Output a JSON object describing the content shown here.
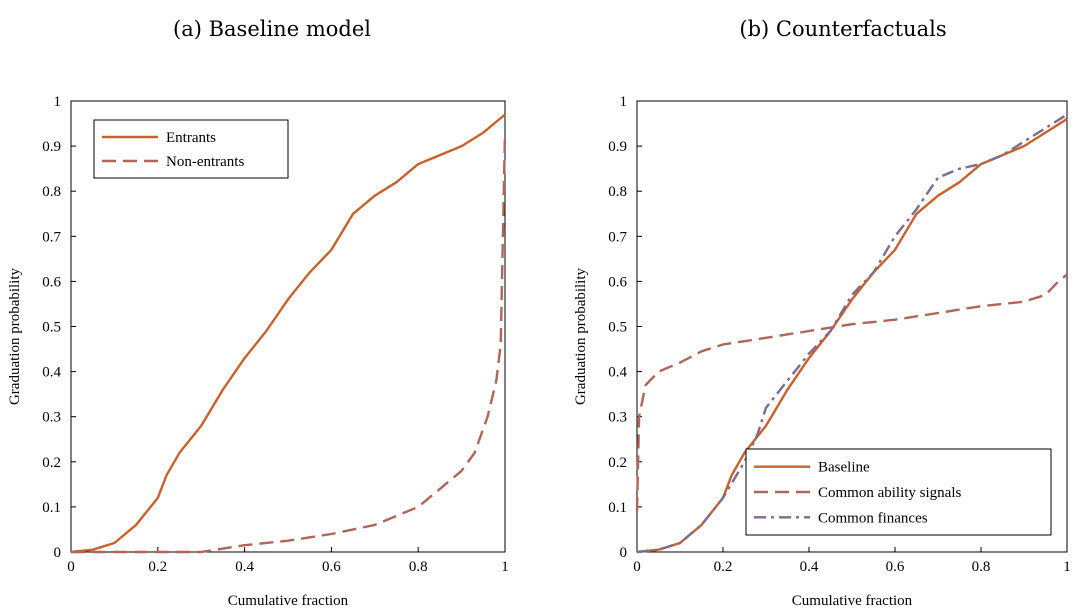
{
  "chart_data": [
    {
      "type": "line",
      "title": "(a) Baseline model",
      "xlabel": "Cumulative fraction",
      "ylabel": "Graduation probability",
      "xlim": [
        0,
        1
      ],
      "ylim": [
        0,
        1
      ],
      "xticks": [
        "0",
        "0.2",
        "0.4",
        "0.6",
        "0.8",
        "1"
      ],
      "yticks": [
        "0",
        "0.1",
        "0.2",
        "0.3",
        "0.4",
        "0.5",
        "0.6",
        "0.7",
        "0.8",
        "0.9",
        "1"
      ],
      "grid": false,
      "legend_position": "top-left",
      "series": [
        {
          "name": "Entrants",
          "color": "#c8622d",
          "dash": "solid",
          "points": [
            [
              0,
              0
            ],
            [
              0.05,
              0.005
            ],
            [
              0.1,
              0.02
            ],
            [
              0.15,
              0.06
            ],
            [
              0.2,
              0.12
            ],
            [
              0.22,
              0.17
            ],
            [
              0.25,
              0.22
            ],
            [
              0.3,
              0.28
            ],
            [
              0.35,
              0.36
            ],
            [
              0.4,
              0.43
            ],
            [
              0.45,
              0.49
            ],
            [
              0.5,
              0.56
            ],
            [
              0.55,
              0.62
            ],
            [
              0.6,
              0.67
            ],
            [
              0.65,
              0.75
            ],
            [
              0.7,
              0.79
            ],
            [
              0.75,
              0.82
            ],
            [
              0.8,
              0.86
            ],
            [
              0.85,
              0.88
            ],
            [
              0.9,
              0.9
            ],
            [
              0.95,
              0.93
            ],
            [
              1,
              0.97
            ]
          ]
        },
        {
          "name": "Non-entrants",
          "color": "#b0655a",
          "dash": "dashed",
          "points": [
            [
              0,
              0
            ],
            [
              0.3,
              0
            ],
            [
              0.4,
              0.015
            ],
            [
              0.5,
              0.025
            ],
            [
              0.6,
              0.04
            ],
            [
              0.7,
              0.06
            ],
            [
              0.8,
              0.1
            ],
            [
              0.85,
              0.14
            ],
            [
              0.9,
              0.18
            ],
            [
              0.93,
              0.22
            ],
            [
              0.96,
              0.3
            ],
            [
              0.98,
              0.38
            ],
            [
              0.99,
              0.46
            ],
            [
              1,
              0.93
            ]
          ]
        }
      ]
    },
    {
      "type": "line",
      "title": "(b) Counterfactuals",
      "xlabel": "Cumulative fraction",
      "ylabel": "Graduation probability",
      "xlim": [
        0,
        1
      ],
      "ylim": [
        0,
        1
      ],
      "xticks": [
        "0",
        "0.2",
        "0.4",
        "0.6",
        "0.8",
        "1"
      ],
      "yticks": [
        "0",
        "0.1",
        "0.2",
        "0.3",
        "0.4",
        "0.5",
        "0.6",
        "0.7",
        "0.8",
        "0.9",
        "1"
      ],
      "grid": false,
      "legend_position": "bottom-right",
      "series": [
        {
          "name": "Baseline",
          "color": "#c8622d",
          "dash": "solid",
          "points": [
            [
              0,
              0
            ],
            [
              0.05,
              0.005
            ],
            [
              0.1,
              0.02
            ],
            [
              0.15,
              0.06
            ],
            [
              0.2,
              0.12
            ],
            [
              0.22,
              0.17
            ],
            [
              0.25,
              0.22
            ],
            [
              0.3,
              0.28
            ],
            [
              0.35,
              0.36
            ],
            [
              0.4,
              0.43
            ],
            [
              0.45,
              0.49
            ],
            [
              0.5,
              0.56
            ],
            [
              0.55,
              0.62
            ],
            [
              0.6,
              0.67
            ],
            [
              0.65,
              0.75
            ],
            [
              0.7,
              0.79
            ],
            [
              0.75,
              0.82
            ],
            [
              0.8,
              0.86
            ],
            [
              0.85,
              0.88
            ],
            [
              0.9,
              0.9
            ],
            [
              0.95,
              0.93
            ],
            [
              1,
              0.96
            ]
          ]
        },
        {
          "name": "Common ability signals",
          "color": "#b0655a",
          "dash": "dashed",
          "points": [
            [
              0,
              0.09
            ],
            [
              0.005,
              0.3
            ],
            [
              0.02,
              0.37
            ],
            [
              0.05,
              0.4
            ],
            [
              0.1,
              0.42
            ],
            [
              0.15,
              0.445
            ],
            [
              0.2,
              0.46
            ],
            [
              0.3,
              0.475
            ],
            [
              0.4,
              0.49
            ],
            [
              0.5,
              0.505
            ],
            [
              0.6,
              0.515
            ],
            [
              0.7,
              0.53
            ],
            [
              0.8,
              0.545
            ],
            [
              0.9,
              0.555
            ],
            [
              0.95,
              0.57
            ],
            [
              0.98,
              0.6
            ],
            [
              1,
              0.615
            ]
          ]
        },
        {
          "name": "Common finances",
          "color": "#7e6b8f",
          "dash": "dashdot",
          "points": [
            [
              0,
              0
            ],
            [
              0.05,
              0.005
            ],
            [
              0.1,
              0.02
            ],
            [
              0.15,
              0.06
            ],
            [
              0.2,
              0.12
            ],
            [
              0.25,
              0.2
            ],
            [
              0.28,
              0.26
            ],
            [
              0.3,
              0.32
            ],
            [
              0.35,
              0.38
            ],
            [
              0.4,
              0.44
            ],
            [
              0.45,
              0.49
            ],
            [
              0.5,
              0.57
            ],
            [
              0.55,
              0.62
            ],
            [
              0.6,
              0.7
            ],
            [
              0.65,
              0.76
            ],
            [
              0.7,
              0.83
            ],
            [
              0.75,
              0.85
            ],
            [
              0.8,
              0.86
            ],
            [
              0.85,
              0.88
            ],
            [
              0.9,
              0.91
            ],
            [
              0.95,
              0.94
            ],
            [
              1,
              0.97
            ]
          ]
        }
      ]
    }
  ]
}
